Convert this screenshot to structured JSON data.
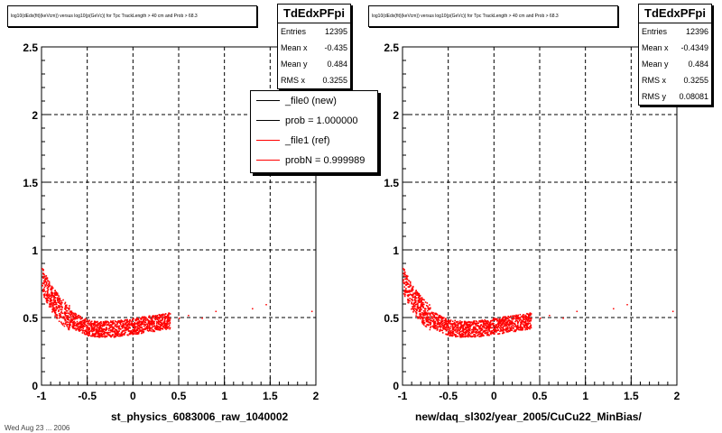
{
  "left": {
    "title": "log10(dEdx(fit)(keVcm)) versus log10(p(GeVc)) for Tpc TrackLength > 40 cm and Prob > 68.3",
    "xtitle": "st_physics_6083006_raw_1040002",
    "stats": {
      "name": "TdEdxPFpi",
      "rows": [
        {
          "label": "Entries",
          "value": "12395"
        },
        {
          "label": "Mean x",
          "value": "-0.435"
        },
        {
          "label": "Mean y",
          "value": "0.484"
        },
        {
          "label": "RMS x",
          "value": "0.3255"
        }
      ]
    },
    "legend": [
      {
        "label": "_file0 (new)",
        "color": "#000000"
      },
      {
        "label": "prob = 1.000000",
        "color": "#000000"
      },
      {
        "label": "_file1 (ref)",
        "color": "#ff0000"
      },
      {
        "label": "probN = 0.999989",
        "color": "#ff0000"
      }
    ]
  },
  "right": {
    "title": "log10(dEdx(fit)(keVcm)) versus log10(p(GeVc)) for Tpc TrackLength > 40 cm and Prob > 68.3",
    "xtitle": "new/daq_sl302/year_2005/CuCu22_MinBias/",
    "stats": {
      "name": "TdEdxPFpi",
      "rows": [
        {
          "label": "Entries",
          "value": "12396"
        },
        {
          "label": "Mean x",
          "value": "-0.4349"
        },
        {
          "label": "Mean y",
          "value": "0.484"
        },
        {
          "label": "RMS x",
          "value": "0.3255"
        },
        {
          "label": "RMS y",
          "value": "0.08081"
        }
      ]
    }
  },
  "footer": "Wed Aug 23 ... 2006",
  "chart_data": [
    {
      "type": "scatter",
      "xlim": [
        -1,
        2
      ],
      "ylim": [
        0,
        2.5
      ],
      "xticks": [
        "-1",
        "-0.5",
        "0",
        "0.5",
        "1",
        "1.5",
        "2"
      ],
      "yticks": [
        "0",
        "0.5",
        "1",
        "1.5",
        "2",
        "2.5"
      ],
      "grid": true,
      "marker_color": "#ff0000",
      "band": [
        [
          -1.0,
          0.78
        ],
        [
          -0.9,
          0.65
        ],
        [
          -0.8,
          0.56
        ],
        [
          -0.7,
          0.5
        ],
        [
          -0.6,
          0.46
        ],
        [
          -0.5,
          0.43
        ],
        [
          -0.4,
          0.42
        ],
        [
          -0.3,
          0.42
        ],
        [
          -0.2,
          0.42
        ],
        [
          -0.1,
          0.43
        ],
        [
          0.0,
          0.44
        ],
        [
          0.1,
          0.45
        ],
        [
          0.2,
          0.46
        ],
        [
          0.3,
          0.47
        ],
        [
          0.4,
          0.48
        ]
      ],
      "sparse": [
        [
          0.5,
          0.5
        ],
        [
          0.6,
          0.52
        ],
        [
          0.75,
          0.5
        ],
        [
          0.9,
          0.55
        ],
        [
          1.3,
          0.57
        ],
        [
          1.45,
          0.6
        ],
        [
          1.95,
          0.55
        ]
      ]
    },
    {
      "type": "scatter",
      "xlim": [
        -1,
        2
      ],
      "ylim": [
        0,
        2.5
      ],
      "xticks": [
        "-1",
        "-0.5",
        "0",
        "0.5",
        "1",
        "1.5",
        "2"
      ],
      "yticks": [
        "0",
        "0.5",
        "1",
        "1.5",
        "2",
        "2.5"
      ],
      "grid": true,
      "marker_color": "#ff0000",
      "band": [
        [
          -1.0,
          0.78
        ],
        [
          -0.9,
          0.65
        ],
        [
          -0.8,
          0.56
        ],
        [
          -0.7,
          0.5
        ],
        [
          -0.6,
          0.46
        ],
        [
          -0.5,
          0.43
        ],
        [
          -0.4,
          0.42
        ],
        [
          -0.3,
          0.42
        ],
        [
          -0.2,
          0.42
        ],
        [
          -0.1,
          0.43
        ],
        [
          0.0,
          0.44
        ],
        [
          0.1,
          0.45
        ],
        [
          0.2,
          0.46
        ],
        [
          0.3,
          0.47
        ],
        [
          0.4,
          0.48
        ]
      ],
      "sparse": [
        [
          0.5,
          0.5
        ],
        [
          0.6,
          0.52
        ],
        [
          0.75,
          0.5
        ],
        [
          0.9,
          0.55
        ],
        [
          1.3,
          0.57
        ],
        [
          1.45,
          0.6
        ],
        [
          1.95,
          0.55
        ]
      ]
    }
  ]
}
